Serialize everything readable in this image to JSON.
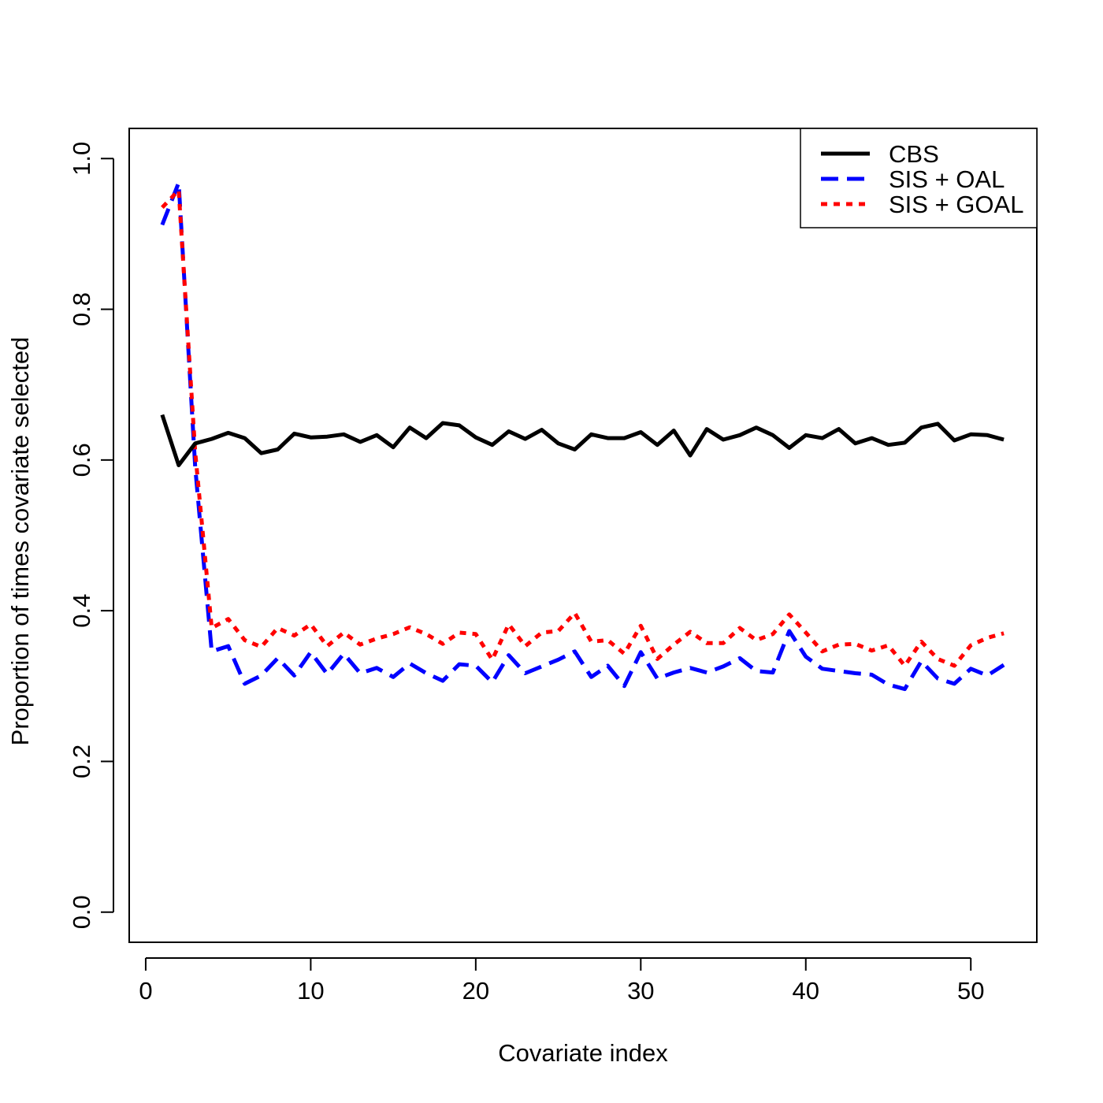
{
  "chart_data": {
    "type": "line",
    "title": "",
    "xlabel": "Covariate index",
    "ylabel": "Proportion of times covariate selected",
    "xlim": [
      -1,
      54
    ],
    "ylim": [
      -0.04,
      1.04
    ],
    "x_ticks": [
      0,
      10,
      20,
      30,
      40,
      50
    ],
    "y_ticks": [
      0.0,
      0.2,
      0.4,
      0.6,
      0.8,
      1.0
    ],
    "x_tick_labels": [
      "0",
      "10",
      "20",
      "30",
      "40",
      "50"
    ],
    "y_tick_labels": [
      "0.0",
      "0.2",
      "0.4",
      "0.6",
      "0.8",
      "1.0"
    ],
    "legend_position": "top-right",
    "x": [
      1,
      2,
      3,
      4,
      5,
      6,
      7,
      8,
      9,
      10,
      11,
      12,
      13,
      14,
      15,
      16,
      17,
      18,
      19,
      20,
      21,
      22,
      23,
      24,
      25,
      26,
      27,
      28,
      29,
      30,
      31,
      32,
      33,
      34,
      35,
      36,
      37,
      38,
      39,
      40,
      41,
      42,
      43,
      44,
      45,
      46,
      47,
      48,
      49,
      50,
      51,
      52
    ],
    "series": [
      {
        "name": "CBS",
        "color": "#000000",
        "line_style": "solid",
        "values": [
          0.66,
          0.593,
          0.622,
          0.628,
          0.636,
          0.629,
          0.609,
          0.614,
          0.635,
          0.63,
          0.631,
          0.634,
          0.624,
          0.633,
          0.617,
          0.643,
          0.629,
          0.649,
          0.646,
          0.63,
          0.62,
          0.638,
          0.628,
          0.64,
          0.622,
          0.614,
          0.634,
          0.629,
          0.629,
          0.637,
          0.62,
          0.639,
          0.606,
          0.641,
          0.627,
          0.633,
          0.643,
          0.633,
          0.616,
          0.633,
          0.629,
          0.641,
          0.622,
          0.629,
          0.62,
          0.623,
          0.643,
          0.648,
          0.626,
          0.634,
          0.633,
          0.627
        ]
      },
      {
        "name": "SIS + OAL",
        "color": "#0000ff",
        "line_style": "dashed",
        "values": [
          0.912,
          0.968,
          0.59,
          0.346,
          0.353,
          0.303,
          0.314,
          0.337,
          0.314,
          0.345,
          0.316,
          0.343,
          0.317,
          0.324,
          0.312,
          0.33,
          0.317,
          0.307,
          0.329,
          0.327,
          0.305,
          0.341,
          0.317,
          0.326,
          0.335,
          0.346,
          0.312,
          0.327,
          0.3,
          0.345,
          0.31,
          0.318,
          0.324,
          0.318,
          0.326,
          0.337,
          0.32,
          0.318,
          0.373,
          0.339,
          0.323,
          0.32,
          0.317,
          0.315,
          0.302,
          0.296,
          0.333,
          0.31,
          0.303,
          0.323,
          0.314,
          0.328
        ]
      },
      {
        "name": "SIS + GOAL",
        "color": "#ff0000",
        "line_style": "dotted",
        "values": [
          0.935,
          0.958,
          0.61,
          0.377,
          0.389,
          0.361,
          0.352,
          0.377,
          0.367,
          0.382,
          0.353,
          0.371,
          0.355,
          0.363,
          0.369,
          0.378,
          0.369,
          0.356,
          0.371,
          0.369,
          0.335,
          0.382,
          0.353,
          0.371,
          0.373,
          0.397,
          0.359,
          0.361,
          0.343,
          0.38,
          0.336,
          0.355,
          0.372,
          0.357,
          0.357,
          0.377,
          0.361,
          0.369,
          0.395,
          0.371,
          0.346,
          0.355,
          0.356,
          0.347,
          0.354,
          0.327,
          0.359,
          0.336,
          0.327,
          0.354,
          0.364,
          0.37
        ]
      }
    ]
  }
}
